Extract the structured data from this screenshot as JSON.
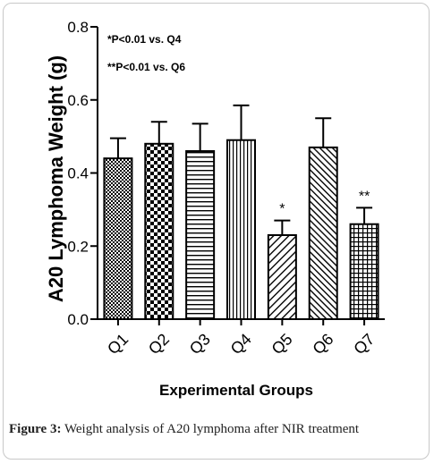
{
  "chart_data": {
    "type": "bar",
    "categories": [
      "Q1",
      "Q2",
      "Q3",
      "Q4",
      "Q5",
      "Q6",
      "Q7"
    ],
    "values": [
      0.44,
      0.48,
      0.46,
      0.49,
      0.23,
      0.47,
      0.26
    ],
    "errors": [
      0.055,
      0.06,
      0.075,
      0.095,
      0.04,
      0.08,
      0.045
    ],
    "significance": [
      "",
      "",
      "",
      "",
      "*",
      "",
      "**"
    ],
    "ylabel": "A20 Lymphoma Weight (g)",
    "xlabel": "Experimental Groups",
    "ylim": [
      0,
      0.8
    ],
    "yticks": [
      "0.0",
      "0.2",
      "0.4",
      "0.6",
      "0.8"
    ],
    "annotations": [
      "*P<0.01 vs. Q4",
      "**P<0.01 vs. Q6"
    ],
    "grid": false,
    "legend": "none"
  },
  "caption": {
    "label": "Figure 3:",
    "text": " Weight analysis of A20 lymphoma after NIR treatment"
  }
}
